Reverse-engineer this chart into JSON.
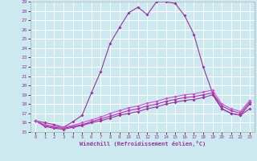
{
  "xlabel": "Windchill (Refroidissement éolien,°C)",
  "xlim": [
    -0.5,
    23.5
  ],
  "ylim": [
    15,
    29
  ],
  "yticks": [
    15,
    16,
    17,
    18,
    19,
    20,
    21,
    22,
    23,
    24,
    25,
    26,
    27,
    28,
    29
  ],
  "xticks": [
    0,
    1,
    2,
    3,
    4,
    5,
    6,
    7,
    8,
    9,
    10,
    11,
    12,
    13,
    14,
    15,
    16,
    17,
    18,
    19,
    20,
    21,
    22,
    23
  ],
  "background_color": "#cce9f0",
  "grid_color": "#ffffff",
  "line_color": "#993399",
  "line1_x": [
    0,
    1,
    2,
    3,
    4,
    5,
    6,
    7,
    8,
    9,
    10,
    11,
    12,
    13,
    14,
    15,
    16,
    17,
    18,
    19,
    20,
    21,
    22,
    23
  ],
  "line1_y": [
    16.2,
    16.0,
    15.8,
    15.5,
    16.1,
    16.8,
    19.2,
    21.5,
    24.5,
    26.2,
    27.8,
    28.4,
    27.6,
    29.0,
    29.0,
    28.8,
    27.5,
    25.5,
    22.0,
    19.2,
    17.5,
    17.0,
    16.8,
    17.5
  ],
  "line2_x": [
    0,
    1,
    2,
    3,
    4,
    5,
    6,
    7,
    8,
    9,
    10,
    11,
    12,
    13,
    14,
    15,
    16,
    17,
    18,
    19,
    20,
    21,
    22,
    23
  ],
  "line2_y": [
    16.2,
    15.6,
    15.4,
    15.3,
    15.5,
    15.7,
    16.0,
    16.2,
    16.5,
    16.8,
    17.0,
    17.2,
    17.5,
    17.7,
    18.0,
    18.2,
    18.4,
    18.5,
    18.7,
    19.0,
    17.5,
    17.0,
    16.8,
    18.0
  ],
  "line3_x": [
    0,
    1,
    2,
    3,
    4,
    5,
    6,
    7,
    8,
    9,
    10,
    11,
    12,
    13,
    14,
    15,
    16,
    17,
    18,
    19,
    20,
    21,
    22,
    23
  ],
  "line3_y": [
    16.2,
    15.7,
    15.5,
    15.4,
    15.6,
    15.8,
    16.1,
    16.4,
    16.7,
    17.0,
    17.3,
    17.5,
    17.8,
    18.0,
    18.3,
    18.5,
    18.7,
    18.8,
    19.0,
    19.2,
    17.8,
    17.3,
    17.0,
    18.2
  ],
  "line4_x": [
    0,
    1,
    2,
    3,
    4,
    5,
    6,
    7,
    8,
    9,
    10,
    11,
    12,
    13,
    14,
    15,
    16,
    17,
    18,
    19,
    20,
    21,
    22,
    23
  ],
  "line4_y": [
    16.2,
    15.8,
    15.6,
    15.5,
    15.7,
    16.0,
    16.3,
    16.6,
    17.0,
    17.3,
    17.6,
    17.8,
    18.1,
    18.3,
    18.6,
    18.8,
    19.0,
    19.1,
    19.3,
    19.5,
    18.0,
    17.5,
    17.2,
    18.4
  ]
}
